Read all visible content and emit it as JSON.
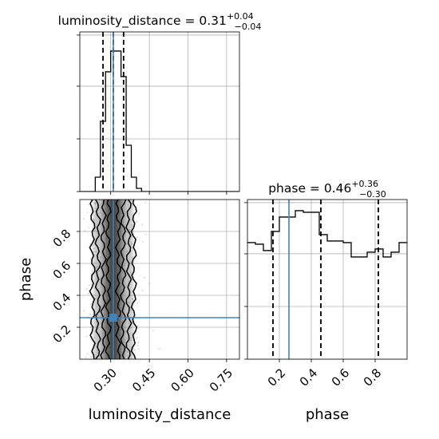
{
  "chart_data": [
    {
      "type": "histogram",
      "panel": "luminosity_distance marginal",
      "title": {
        "param": "luminosity_distance",
        "median": "0.31",
        "plus": "+0.04",
        "minus": "−0.04"
      },
      "x": "luminosity_distance",
      "xlim": [
        0.18,
        0.8
      ],
      "bin_edges": [
        0.18,
        0.2,
        0.22,
        0.24,
        0.26,
        0.28,
        0.3,
        0.32,
        0.34,
        0.36,
        0.38,
        0.4,
        0.42,
        0.44,
        0.46,
        0.48,
        0.5,
        0.52,
        0.54,
        0.56,
        0.58,
        0.6,
        0.62,
        0.64,
        0.66,
        0.68,
        0.7,
        0.72,
        0.74,
        0.76,
        0.78,
        0.8
      ],
      "counts": [
        0,
        0,
        0,
        0.09,
        0.44,
        0.75,
        0.88,
        0.88,
        0.72,
        0.29,
        0.09,
        0.02,
        0,
        0,
        0,
        0,
        0,
        0,
        0,
        0,
        0,
        0,
        0,
        0,
        0,
        0,
        0,
        0,
        0,
        0,
        0
      ],
      "quantiles": [
        0.27,
        0.31,
        0.35
      ],
      "truth": 0.31,
      "yticks": [
        0.0,
        0.33,
        0.66,
        0.98
      ]
    },
    {
      "type": "heatmap",
      "panel": "luminosity_distance vs phase 2D density with contours",
      "x": "luminosity_distance",
      "y": "phase",
      "xlim": [
        0.18,
        0.8
      ],
      "ylim": [
        0.0,
        1.0
      ],
      "xticks": [
        0.3,
        0.45,
        0.6,
        0.75
      ],
      "xticklabels": [
        "0.30",
        "0.45",
        "0.60",
        "0.75"
      ],
      "yticks": [
        0.2,
        0.4,
        0.6,
        0.8
      ],
      "yticklabels": [
        "0.2",
        "0.4",
        "0.6",
        "0.8"
      ],
      "truth": {
        "x": 0.31,
        "y": 0.26
      },
      "x_center": 0.31,
      "x_sigma": 0.035,
      "xlabel": "luminosity_distance",
      "ylabel": "phase",
      "grid": true
    },
    {
      "type": "histogram",
      "panel": "phase marginal",
      "title": {
        "param": "phase",
        "median": "0.46",
        "plus": "+0.36",
        "minus": "−0.30"
      },
      "x": "phase",
      "xlim": [
        0.0,
        1.0
      ],
      "bin_edges": [
        0.0,
        0.05,
        0.1,
        0.15,
        0.2,
        0.25,
        0.3,
        0.35,
        0.4,
        0.45,
        0.5,
        0.55,
        0.6,
        0.65,
        0.7,
        0.75,
        0.8,
        0.85,
        0.9,
        0.95,
        1.0
      ],
      "counts": [
        0.73,
        0.72,
        0.68,
        0.8,
        0.89,
        0.89,
        0.93,
        0.92,
        0.92,
        0.78,
        0.74,
        0.74,
        0.73,
        0.64,
        0.64,
        0.67,
        0.69,
        0.64,
        0.67,
        0.73
      ],
      "quantiles": [
        0.16,
        0.46,
        0.82
      ],
      "truth": 0.26,
      "xticks": [
        0.2,
        0.4,
        0.6,
        0.8
      ],
      "xticklabels": [
        "0.2",
        "0.4",
        "0.6",
        "0.8"
      ],
      "yticks": [
        0.0,
        0.33,
        0.66,
        0.98
      ],
      "xlabel": "phase"
    }
  ],
  "colors": {
    "truth": "#4682b4",
    "grid": "#b0b0b0",
    "hist": "#000000"
  }
}
